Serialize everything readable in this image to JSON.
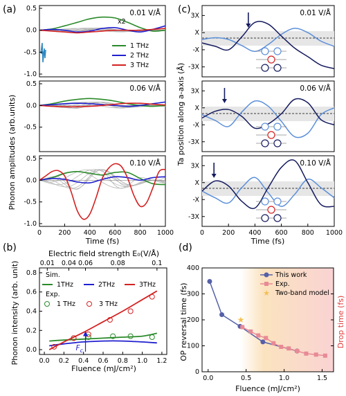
{
  "panels": {
    "a": {
      "label": "(a)",
      "xlabel": "Time (fs)",
      "ylabel": "Phonon amplitudes (arb.units)",
      "x_ticks": [
        "0",
        "200",
        "400",
        "600",
        "800",
        "1000"
      ],
      "y_ticks_top": [
        "0.5",
        "0.0",
        "-0.5",
        "-1.0"
      ],
      "y_ticks_mid": [
        "0.5",
        "0.0",
        "-0.5"
      ],
      "y_ticks_bot": [
        "0.5",
        "0.0",
        "-0.5",
        "-1.0"
      ],
      "fields": [
        "0.01 V/Å",
        "0.06 V/Å",
        "0.10 V/Å"
      ],
      "scale_note": "x2",
      "legend": [
        "1 THz",
        "2 THz",
        "3 THz"
      ]
    },
    "b": {
      "label": "(b)",
      "top_axis_label": "Electric field strength E₀(V/Å)",
      "top_ticks": [
        "0.01",
        "0.04",
        "0.06",
        "0.08",
        "0.1"
      ],
      "xlabel": "Fluence (mJ/cm²)",
      "ylabel": "Phonon intensity (arb. unit)",
      "x_ticks": [
        "0.0",
        "0.2",
        "0.4",
        "0.6",
        "0.8",
        "1.0",
        "1.2"
      ],
      "y_ticks": [
        "0.0",
        "0.2",
        "0.4",
        "0.6",
        "0.8"
      ],
      "sim_title": "Sim.",
      "sim_legend": [
        "1THz",
        "2THz",
        "3THz"
      ],
      "exp_title": "Exp.",
      "exp_legend": [
        "1 THz",
        "3 THz"
      ],
      "fc_label": "F",
      "fc_sub": "c"
    },
    "c": {
      "label": "(c)",
      "xlabel": "Time (fs)",
      "ylabel": "Ta position along a-axis (Å)",
      "x_ticks": [
        "0",
        "200",
        "400",
        "600",
        "800",
        "1000"
      ],
      "y_ticks": [
        "3X",
        "X",
        "-X",
        "-3X"
      ],
      "fields": [
        "0.01 V/Å",
        "0.06 V/Å",
        "0.10 V/Å"
      ]
    },
    "d": {
      "label": "(d)",
      "xlabel": "Fluence (mJ/cm²)",
      "ylabel_left": "OP reversal time (fs)",
      "ylabel_right": "Drop time (fs)",
      "x_ticks": [
        "0.0",
        "0.5",
        "1.0",
        "1.5"
      ],
      "y_ticks": [
        "0",
        "100",
        "200",
        "300",
        "400"
      ],
      "legend": [
        "This work",
        "Exp.",
        "Two-band model"
      ]
    }
  },
  "colors": {
    "thz1": "#2a8a2a",
    "thz2": "#1f1fcf",
    "thz3": "#d42020",
    "gray": "#b5b5b5",
    "light_blue": "#5b8fd9",
    "dark_blue": "#141a5e",
    "this_work": "#5560a8",
    "exp_pink": "#e88a96",
    "star": "#f3c04f",
    "drop_axis": "#e23b3b"
  },
  "chart_data": [
    {
      "panel": "a",
      "type": "line",
      "x_range": [
        0,
        1000
      ],
      "y_range": [
        -1.0,
        0.5
      ],
      "series": [
        {
          "name": "1 THz",
          "field": "0.01 V/Å",
          "x": [
            0,
            100,
            200,
            300,
            400,
            500,
            600,
            700,
            800,
            900,
            1000
          ],
          "y": [
            0.0,
            0.03,
            0.1,
            0.18,
            0.26,
            0.3,
            0.28,
            0.18,
            0.06,
            -0.02,
            0.0
          ]
        },
        {
          "name": "2 THz",
          "field": "0.01 V/Å",
          "x": [
            0,
            100,
            200,
            300,
            400,
            500,
            600,
            700,
            800,
            900,
            1000
          ],
          "y": [
            0.0,
            0.02,
            0.0,
            -0.04,
            -0.02,
            0.04,
            0.06,
            0.0,
            -0.04,
            0.02,
            0.1
          ]
        },
        {
          "name": "3 THz",
          "field": "0.01 V/Å",
          "x": [
            0,
            100,
            200,
            300,
            400,
            500,
            600,
            700,
            800,
            900,
            1000
          ],
          "y": [
            0.0,
            -0.02,
            -0.04,
            -0.06,
            -0.04,
            -0.02,
            0.0,
            0.0,
            0.0,
            0.02,
            0.04
          ]
        },
        {
          "name": "1 THz",
          "field": "0.06 V/Å",
          "x": [
            0,
            100,
            200,
            300,
            400,
            500,
            600,
            700,
            800,
            900,
            1000
          ],
          "y": [
            0.0,
            0.04,
            0.1,
            0.14,
            0.16,
            0.14,
            0.1,
            0.04,
            0.0,
            -0.02,
            0.0
          ]
        },
        {
          "name": "2 THz",
          "field": "0.06 V/Å",
          "x": [
            0,
            100,
            200,
            300,
            400,
            500,
            600,
            700,
            800,
            900,
            1000
          ],
          "y": [
            0.0,
            0.02,
            0.04,
            0.05,
            0.04,
            0.02,
            0.0,
            -0.02,
            0.0,
            0.04,
            0.08
          ]
        },
        {
          "name": "3 THz",
          "field": "0.06 V/Å",
          "x": [
            0,
            100,
            200,
            300,
            400,
            500,
            600,
            700,
            800,
            900,
            1000
          ],
          "y": [
            0.0,
            -0.02,
            -0.03,
            -0.03,
            -0.02,
            0.0,
            0.03,
            0.05,
            0.05,
            0.03,
            0.01
          ]
        },
        {
          "name": "1 THz",
          "field": "0.10 V/Å",
          "x": [
            0,
            100,
            200,
            300,
            400,
            500,
            600,
            700,
            800,
            900,
            1000
          ],
          "y": [
            0.0,
            0.06,
            0.16,
            0.2,
            0.16,
            0.12,
            0.18,
            0.18,
            0.04,
            -0.08,
            -0.1
          ]
        },
        {
          "name": "2 THz",
          "field": "0.10 V/Å",
          "x": [
            0,
            100,
            200,
            300,
            400,
            500,
            600,
            700,
            800,
            900,
            1000
          ],
          "y": [
            0.0,
            0.04,
            0.02,
            -0.04,
            -0.06,
            0.02,
            0.08,
            0.06,
            0.0,
            0.06,
            0.08
          ]
        },
        {
          "name": "3 THz",
          "field": "0.10 V/Å",
          "x": [
            0,
            50,
            100,
            150,
            200,
            250,
            300,
            350,
            400,
            450,
            500,
            550,
            600,
            650,
            700,
            750,
            800,
            850,
            900,
            950,
            1000
          ],
          "y": [
            0.0,
            0.1,
            0.2,
            0.22,
            0.1,
            -0.25,
            -0.7,
            -0.9,
            -0.78,
            -0.4,
            0.05,
            0.28,
            0.38,
            0.32,
            0.05,
            -0.35,
            -0.6,
            -0.52,
            -0.18,
            0.2,
            0.25
          ]
        }
      ]
    },
    {
      "panel": "b",
      "type": "line",
      "x_range": [
        -0.05,
        1.25
      ],
      "y_range": [
        -0.05,
        0.85
      ],
      "series": [
        {
          "name": "1THz",
          "x": [
            0.05,
            0.2,
            0.4,
            0.6,
            0.8,
            1.0,
            1.15
          ],
          "y": [
            0.09,
            0.1,
            0.11,
            0.12,
            0.13,
            0.14,
            0.17
          ]
        },
        {
          "name": "2THz",
          "x": [
            0.05,
            0.2,
            0.4,
            0.6,
            0.8,
            1.0,
            1.15
          ],
          "y": [
            0.04,
            0.06,
            0.08,
            0.09,
            0.09,
            0.08,
            0.07
          ]
        },
        {
          "name": "3THz",
          "x": [
            0.05,
            0.2,
            0.4,
            0.6,
            0.8,
            1.0,
            1.15
          ],
          "y": [
            0.0,
            0.08,
            0.18,
            0.29,
            0.4,
            0.52,
            0.61
          ]
        },
        {
          "name": "1 THz",
          "kind": "exp-scatter",
          "x": [
            0.3,
            0.45,
            0.7,
            0.88,
            1.1
          ],
          "y": [
            0.12,
            0.13,
            0.14,
            0.14,
            0.13
          ]
        },
        {
          "name": "3 THz",
          "kind": "exp-scatter",
          "x": [
            0.1,
            0.3,
            0.45,
            0.67,
            0.88,
            1.1
          ],
          "y": [
            0.03,
            0.12,
            0.16,
            0.31,
            0.4,
            0.55
          ]
        }
      ],
      "annotation": {
        "Fc_x": 0.42
      }
    },
    {
      "panel": "c",
      "type": "line",
      "x_range": [
        0,
        1000
      ],
      "y_range": [
        -4,
        4
      ],
      "series": [
        {
          "field": "0.01 V/Å",
          "kind": "light",
          "x": [
            0,
            100,
            200,
            300,
            400,
            500,
            600,
            700,
            800,
            900,
            1000
          ],
          "y": [
            0.2,
            0.4,
            0.2,
            -0.5,
            -1.2,
            -0.4,
            0.8,
            1.5,
            1.0,
            0.0,
            -0.6
          ]
        },
        {
          "field": "0.01 V/Å",
          "kind": "dark",
          "x": [
            0,
            100,
            200,
            300,
            400,
            500,
            600,
            700,
            800,
            900,
            1000
          ],
          "y": [
            -0.2,
            -0.6,
            -1.0,
            0.5,
            2.2,
            2.0,
            0.6,
            -0.8,
            -1.8,
            -2.8,
            -3.2
          ]
        },
        {
          "field": "0.06 V/Å",
          "kind": "light",
          "x": [
            0,
            100,
            200,
            300,
            400,
            500,
            600,
            700,
            800,
            900,
            1000
          ],
          "y": [
            0.2,
            -0.5,
            -1.2,
            0.5,
            1.8,
            1.2,
            -0.6,
            -2.4,
            -2.0,
            0.2,
            1.0
          ]
        },
        {
          "field": "0.06 V/Å",
          "kind": "dark",
          "x": [
            0,
            100,
            200,
            300,
            400,
            500,
            600,
            700,
            800,
            900,
            1000
          ],
          "y": [
            -0.2,
            0.6,
            0.8,
            0.0,
            -1.4,
            -0.9,
            0.3,
            2.0,
            1.6,
            -0.4,
            -1.0
          ]
        },
        {
          "field": "0.10 V/Å",
          "kind": "light",
          "x": [
            0,
            100,
            200,
            300,
            400,
            500,
            600,
            700,
            800,
            900,
            1000
          ],
          "y": [
            0.0,
            -0.8,
            -1.4,
            0.4,
            1.6,
            -0.2,
            -1.8,
            -0.4,
            1.4,
            0.4,
            -0.8
          ]
        },
        {
          "field": "0.10 V/Å",
          "kind": "dark",
          "x": [
            0,
            100,
            200,
            300,
            400,
            500,
            600,
            700,
            800,
            900,
            1000
          ],
          "y": [
            0.0,
            1.2,
            0.6,
            -1.2,
            -2.0,
            0.4,
            2.8,
            3.6,
            1.0,
            -1.6,
            -1.8
          ]
        }
      ],
      "arrows_x": [
        350,
        170,
        90
      ]
    },
    {
      "panel": "d",
      "type": "line",
      "x_range": [
        -0.08,
        1.65
      ],
      "y_range": [
        0,
        400
      ],
      "series": [
        {
          "name": "This work",
          "x": [
            0.02,
            0.18,
            0.42,
            0.72,
            1.17
          ],
          "y": [
            348,
            220,
            175,
            115,
            80
          ]
        },
        {
          "name": "Exp.",
          "x": [
            0.45,
            0.56,
            0.66,
            0.76,
            0.86,
            0.96,
            1.06,
            1.17,
            1.29,
            1.42,
            1.54
          ],
          "y": [
            172,
            155,
            140,
            130,
            110,
            96,
            90,
            80,
            70,
            66,
            62
          ]
        },
        {
          "name": "Two-band model",
          "x": [
            0.43
          ],
          "y": [
            200
          ]
        }
      ]
    }
  ]
}
